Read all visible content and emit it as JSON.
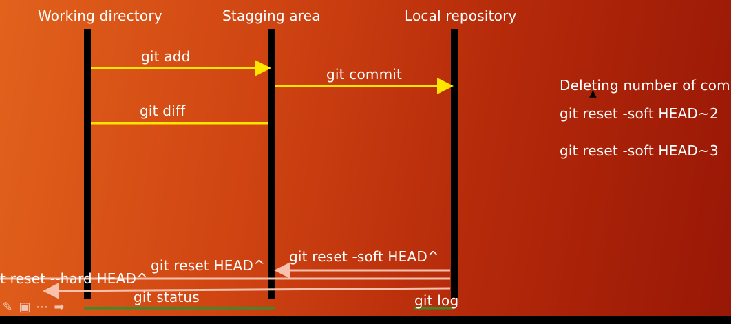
{
  "columns": {
    "working": "Working directory",
    "staging": "Stagging area",
    "local": "Local repository"
  },
  "arrows": {
    "git_add": "git add",
    "git_commit": "git commit",
    "git_diff": "git diff",
    "git_reset_soft_head": "git reset -soft HEAD^",
    "git_reset_head": "git reset HEAD^",
    "git_reset_hard_head": "t reset --hard HEAD^",
    "git_status": "git status",
    "git_log": "git log"
  },
  "side_notes": {
    "heading": "Deleting number of comm",
    "cmd1": "git reset -soft HEAD~2",
    "cmd2": "git reset -soft HEAD~3"
  },
  "colors": {
    "yellow_arrow": "#ffe600",
    "pink_arrow": "#f7c1ae",
    "green_underline": "#3a8a2e"
  },
  "icons": [
    "pen-icon",
    "slide-icon",
    "more-icon",
    "next-arrow-icon"
  ]
}
